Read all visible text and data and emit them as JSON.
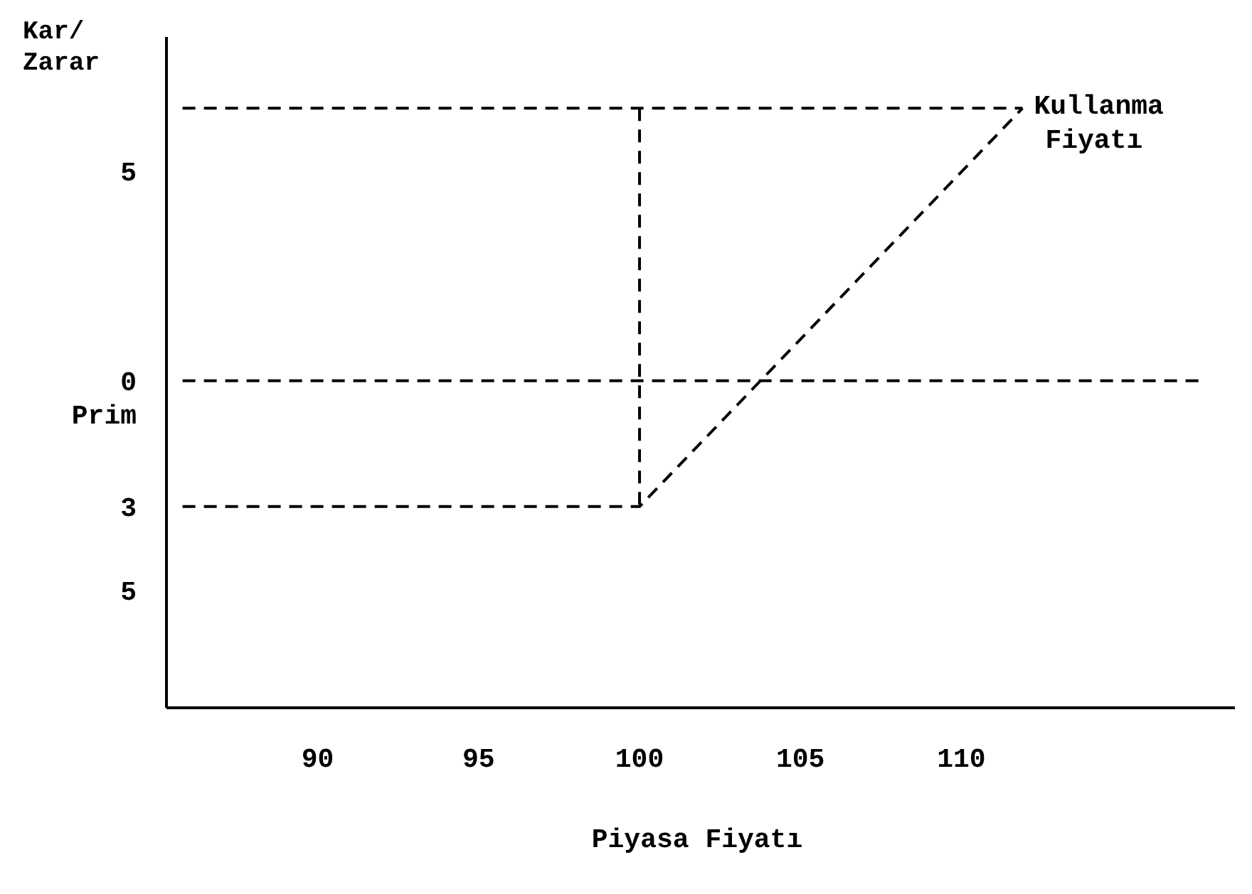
{
  "chart_data": {
    "type": "line",
    "xlabel": "Piyasa Fiyatı",
    "ylabel": "Kar/ Zarar",
    "xlim": [
      85.3,
      118.5
    ],
    "xticks": [
      90,
      95,
      100,
      105,
      110
    ],
    "ylim": [
      -7.8,
      8.2
    ],
    "yticks": [
      {
        "value": 5,
        "label": "5"
      },
      {
        "value": 0,
        "label": "0"
      },
      {
        "value": -0.8,
        "label": "Prim"
      },
      {
        "value": -3,
        "label": "3"
      },
      {
        "value": -5,
        "label": "5"
      }
    ],
    "marker": "none",
    "line_style": "dashed",
    "series": [
      {
        "color": "#000000",
        "x": [
          85.8,
          100,
          111.9
        ],
        "values": [
          -3,
          -3,
          6.5
        ]
      },
      {
        "color": "#000000",
        "x": [
          85.8,
          117.5
        ],
        "values": [
          0,
          0
        ]
      },
      {
        "color": "#000000",
        "x": [
          85.8,
          111.9
        ],
        "values": [
          6.5,
          6.5
        ]
      },
      {
        "color": "#000000",
        "x": [
          100,
          100
        ],
        "values": [
          6.5,
          -3
        ]
      }
    ],
    "annotations": [
      {
        "text": "Kullanma Fiyatı",
        "x": 111.9,
        "y": 6.5
      }
    ]
  }
}
